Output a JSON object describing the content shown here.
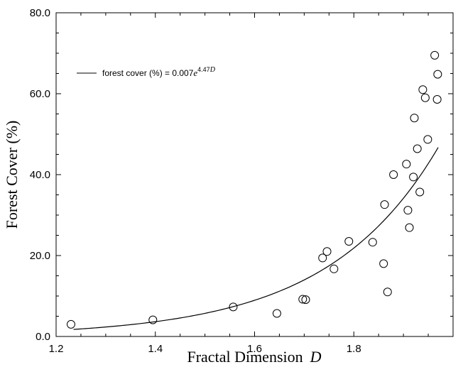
{
  "chart_data": {
    "type": "scatter",
    "xlabel": "Fractal Dimension",
    "xlabel_var": "D",
    "ylabel": "Forest Cover (%)",
    "xlim": [
      1.2,
      2.0
    ],
    "ylim": [
      0,
      80
    ],
    "x_ticks": [
      "1.2",
      "1.4",
      "1.6",
      "1.8"
    ],
    "y_ticks": [
      "0.0",
      "20.0",
      "40.0",
      "60.0",
      "80.0"
    ],
    "grid": false,
    "legend": {
      "position": "top-left",
      "prefix": "forest cover (%) = 0.007",
      "base": "e",
      "exponent": "4.47",
      "exponent_var": "D"
    },
    "series": [
      {
        "kind": "points",
        "points": [
          [
            1.23,
            3.0
          ],
          [
            1.395,
            4.1
          ],
          [
            1.557,
            7.3
          ],
          [
            1.645,
            5.7
          ],
          [
            1.697,
            9.2
          ],
          [
            1.703,
            9.1
          ],
          [
            1.737,
            19.4
          ],
          [
            1.746,
            21.0
          ],
          [
            1.76,
            16.7
          ],
          [
            1.79,
            23.5
          ],
          [
            1.838,
            23.3
          ],
          [
            1.86,
            18.0
          ],
          [
            1.862,
            32.6
          ],
          [
            1.868,
            11.0
          ],
          [
            1.88,
            40.0
          ],
          [
            1.906,
            42.6
          ],
          [
            1.909,
            31.2
          ],
          [
            1.912,
            26.9
          ],
          [
            1.92,
            39.4
          ],
          [
            1.922,
            54.0
          ],
          [
            1.928,
            46.4
          ],
          [
            1.933,
            35.7
          ],
          [
            1.939,
            61.0
          ],
          [
            1.944,
            59.0
          ],
          [
            1.949,
            48.7
          ],
          [
            1.963,
            69.5
          ],
          [
            1.968,
            58.6
          ],
          [
            1.969,
            64.8
          ]
        ]
      },
      {
        "kind": "fit",
        "coefficient": 0.007,
        "rate": 4.47,
        "x_range": [
          1.235,
          1.97
        ]
      }
    ]
  }
}
